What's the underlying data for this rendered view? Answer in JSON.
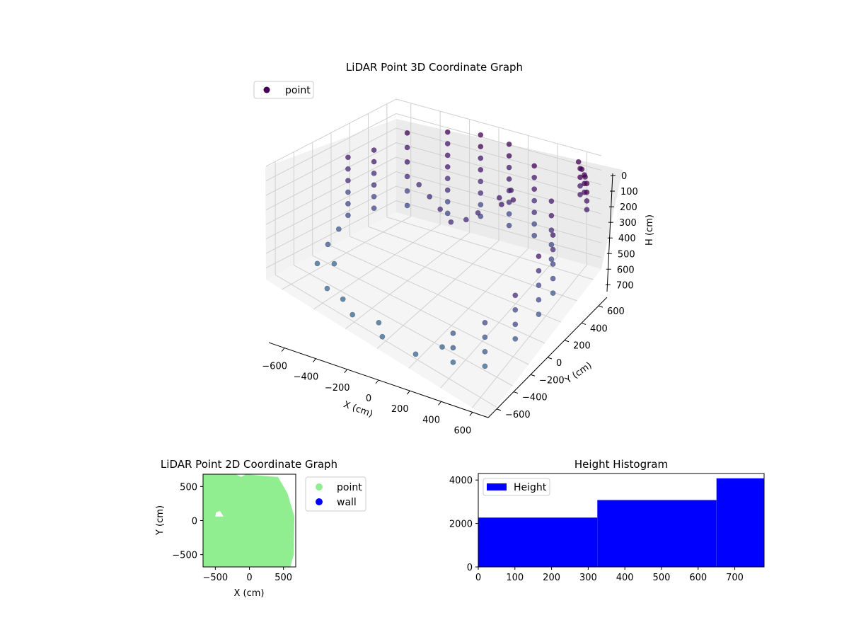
{
  "chart_data": [
    {
      "type": "scatter3d",
      "title": "LiDAR Point 3D Coordinate Graph",
      "xlabel": "X (cm)",
      "ylabel": "Y (cm)",
      "zlabel": "H (cm)",
      "xlim": [
        -700,
        700
      ],
      "ylim": [
        -700,
        700
      ],
      "zlim": [
        0,
        780
      ],
      "z_axis_inverted": true,
      "xticks": [
        -600,
        -400,
        -200,
        0,
        200,
        400,
        600
      ],
      "yticks": [
        -600,
        -400,
        -200,
        0,
        200,
        400,
        600
      ],
      "zticks": [
        0,
        100,
        200,
        300,
        400,
        500,
        600,
        700
      ],
      "grid": true,
      "colormap": "viridis",
      "legend": {
        "placement": "top-left",
        "entries": [
          {
            "label": "point",
            "color": "#440154"
          }
        ]
      },
      "series": [
        {
          "name": "point",
          "description_of_values": "approximate reconstructed LiDAR samples, x/y/h in cm",
          "points": [
            [
              -650,
              100,
              180
            ],
            [
              -650,
              100,
              260
            ],
            [
              -650,
              100,
              340
            ],
            [
              -650,
              100,
              420
            ],
            [
              -650,
              100,
              500
            ],
            [
              -650,
              100,
              580
            ],
            [
              -600,
              300,
              180
            ],
            [
              -600,
              300,
              260
            ],
            [
              -600,
              300,
              340
            ],
            [
              -600,
              300,
              420
            ],
            [
              -600,
              300,
              500
            ],
            [
              -600,
              300,
              580
            ],
            [
              -500,
              500,
              100
            ],
            [
              -500,
              500,
              200
            ],
            [
              -500,
              500,
              300
            ],
            [
              -500,
              500,
              400
            ],
            [
              -500,
              500,
              500
            ],
            [
              -500,
              500,
              600
            ],
            [
              -300,
              620,
              80
            ],
            [
              -300,
              620,
              160
            ],
            [
              -300,
              620,
              240
            ],
            [
              -300,
              620,
              320
            ],
            [
              -300,
              620,
              400
            ],
            [
              -300,
              620,
              480
            ],
            [
              -300,
              620,
              560
            ],
            [
              -300,
              620,
              640
            ],
            [
              -100,
              660,
              60
            ],
            [
              -100,
              660,
              140
            ],
            [
              -100,
              660,
              220
            ],
            [
              -100,
              660,
              300
            ],
            [
              -100,
              660,
              380
            ],
            [
              -100,
              660,
              460
            ],
            [
              -100,
              660,
              540
            ],
            [
              -100,
              660,
              620
            ],
            [
              100,
              650,
              60
            ],
            [
              100,
              650,
              140
            ],
            [
              100,
              650,
              220
            ],
            [
              100,
              650,
              300
            ],
            [
              100,
              650,
              380
            ],
            [
              100,
              650,
              460
            ],
            [
              100,
              650,
              540
            ],
            [
              100,
              650,
              620
            ],
            [
              300,
              600,
              120
            ],
            [
              300,
              600,
              200
            ],
            [
              300,
              600,
              280
            ],
            [
              300,
              600,
              360
            ],
            [
              300,
              600,
              440
            ],
            [
              300,
              600,
              520
            ],
            [
              300,
              600,
              600
            ],
            [
              500,
              450,
              200
            ],
            [
              500,
              450,
              300
            ],
            [
              500,
              450,
              400
            ],
            [
              500,
              450,
              500
            ],
            [
              500,
              450,
              600
            ],
            [
              620,
              250,
              250
            ],
            [
              620,
              250,
              350
            ],
            [
              620,
              250,
              450
            ],
            [
              620,
              250,
              550
            ],
            [
              620,
              250,
              650
            ],
            [
              660,
              0,
              200
            ],
            [
              660,
              0,
              300
            ],
            [
              660,
              0,
              400
            ],
            [
              660,
              0,
              500
            ],
            [
              660,
              0,
              600
            ],
            [
              640,
              -250,
              300
            ],
            [
              640,
              -250,
              400
            ],
            [
              640,
              -250,
              500
            ],
            [
              640,
              -250,
              600
            ],
            [
              550,
              -450,
              400
            ],
            [
              550,
              -450,
              500
            ],
            [
              550,
              -450,
              600
            ],
            [
              550,
              -450,
              700
            ],
            [
              400,
              -550,
              500
            ],
            [
              400,
              -550,
              600
            ],
            [
              400,
              -550,
              700
            ],
            [
              -600,
              -200,
              650
            ],
            [
              -550,
              -400,
              680
            ],
            [
              -400,
              -550,
              700
            ],
            [
              -200,
              -620,
              720
            ],
            [
              0,
              -640,
              730
            ],
            [
              200,
              -620,
              730
            ],
            [
              -650,
              0,
              640
            ],
            [
              -500,
              -300,
              690
            ],
            [
              -300,
              -550,
              710
            ],
            [
              -300,
              300,
              300
            ],
            [
              -200,
              250,
              320
            ],
            [
              -100,
              200,
              340
            ],
            [
              0,
              150,
              360
            ],
            [
              100,
              150,
              300
            ],
            [
              150,
              200,
              260
            ],
            [
              250,
              300,
              220
            ],
            [
              300,
              350,
              200
            ],
            [
              200,
              500,
              260
            ],
            [
              150,
              450,
              300
            ],
            [
              600,
              600,
              0
            ],
            [
              650,
              550,
              0
            ],
            [
              700,
              500,
              0
            ],
            [
              600,
              620,
              60
            ],
            [
              600,
              620,
              120
            ],
            [
              600,
              620,
              180
            ],
            [
              600,
              620,
              240
            ],
            [
              650,
              580,
              60
            ],
            [
              650,
              580,
              120
            ],
            [
              650,
              580,
              180
            ],
            [
              700,
              520,
              60
            ],
            [
              700,
              520,
              120
            ],
            [
              700,
              520,
              180
            ],
            [
              700,
              520,
              240
            ],
            [
              -100,
              -500,
              770
            ],
            [
              250,
              -400,
              780
            ]
          ]
        }
      ]
    },
    {
      "type": "scatter",
      "title": "LiDAR Point 2D Coordinate Graph",
      "xlabel": "X (cm)",
      "ylabel": "Y (cm)",
      "xlim": [
        -680,
        680
      ],
      "ylim": [
        -680,
        680
      ],
      "xticks": [
        -500,
        0,
        500
      ],
      "yticks": [
        -500,
        0,
        500
      ],
      "legend": {
        "placement": "outside-right",
        "entries": [
          {
            "label": "point",
            "color": "#90ee90"
          },
          {
            "label": "wall",
            "color": "#0000ff"
          }
        ]
      },
      "series": [
        {
          "name": "point",
          "color": "#90ee90",
          "region": "dense fill covering roughly -680..650 in X and -680..680 in Y"
        },
        {
          "name": "wall",
          "color": "#0000ff",
          "points": []
        }
      ]
    },
    {
      "type": "bar",
      "title": "Height Histogram",
      "xlim": [
        0,
        780
      ],
      "ylim": [
        0,
        4300
      ],
      "xticks": [
        0,
        100,
        200,
        300,
        400,
        500,
        600,
        700
      ],
      "yticks": [
        0,
        2000,
        4000
      ],
      "color": "#0000ff",
      "legend": {
        "placement": "top-left",
        "entries": [
          {
            "label": "Height",
            "color": "#0000ff"
          }
        ]
      },
      "bins": [
        {
          "from": 0,
          "to": 325,
          "count": 2270
        },
        {
          "from": 325,
          "to": 650,
          "count": 3080
        },
        {
          "from": 650,
          "to": 780,
          "count": 4080
        }
      ]
    }
  ]
}
